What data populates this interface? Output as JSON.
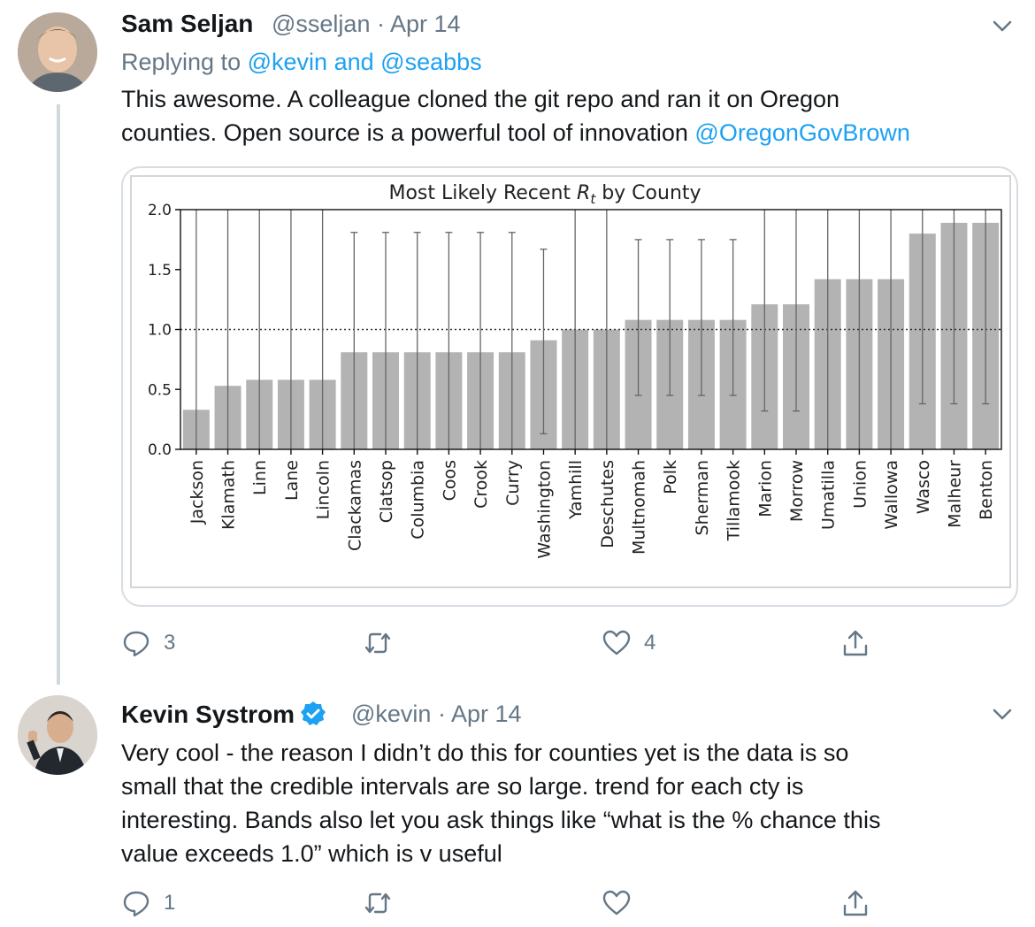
{
  "tweet1": {
    "name": "Sam Seljan",
    "handle": "@sseljan",
    "sep": "·",
    "date": "Apr 14",
    "replying_prefix": "Replying to",
    "replying_user1": "@kevin",
    "replying_and": "and",
    "replying_user2": "@seabbs",
    "text_line1": "This awesome. A colleague cloned the git repo and ran it on Oregon",
    "text_line2": "counties. Open source is a powerful tool of innovation",
    "mention": "@OregonGovBrown",
    "reply_count": "3",
    "retweet_count": "",
    "like_count": "4"
  },
  "tweet2": {
    "name": "Kevin Systrom",
    "handle": "@kevin",
    "sep": "·",
    "date": "Apr 14",
    "text_lines": [
      "Very cool - the reason I didn’t do this for counties yet is the data is so",
      "small that the credible intervals are so large. trend for each cty is",
      "interesting. Bands also let you ask things like “what is the % chance this",
      "value exceeds 1.0” which is v useful"
    ],
    "reply_count": "1",
    "retweet_count": "",
    "like_count": ""
  },
  "icons": {
    "reply": "reply-icon",
    "retweet": "retweet-icon",
    "like": "heart-icon",
    "share": "share-icon",
    "more": "chevron-down-icon",
    "verified": "verified-badge-icon"
  },
  "colors": {
    "link": "#1da1f2",
    "muted": "#657786",
    "bar": "#b3b3b3",
    "verified": "#1da1f2"
  },
  "chart_data": {
    "type": "bar",
    "title_main": "Most Likely Recent ",
    "title_sym": "R",
    "title_sub": "t",
    "title_end": " by County",
    "xlabel": "",
    "ylabel": "",
    "ylim": [
      0,
      2.0
    ],
    "yticks": [
      "0.0",
      "0.5",
      "1.0",
      "1.5",
      "2.0"
    ],
    "ytick_values": [
      0,
      0.5,
      1.0,
      1.5,
      2.0
    ],
    "reference_line": 1.0,
    "categories": [
      "Jackson",
      "Klamath",
      "Linn",
      "Lane",
      "Lincoln",
      "Clackamas",
      "Clatsop",
      "Columbia",
      "Coos",
      "Crook",
      "Curry",
      "Washington",
      "Yamhill",
      "Deschutes",
      "Multnomah",
      "Polk",
      "Sherman",
      "Tillamook",
      "Marion",
      "Morrow",
      "Umatilla",
      "Union",
      "Wallowa",
      "Wasco",
      "Malheur",
      "Benton"
    ],
    "values": [
      0.33,
      0.53,
      0.58,
      0.58,
      0.58,
      0.81,
      0.81,
      0.81,
      0.81,
      0.81,
      0.81,
      0.91,
      1.0,
      1.0,
      1.08,
      1.08,
      1.08,
      1.08,
      1.21,
      1.21,
      1.42,
      1.42,
      1.42,
      1.8,
      1.89,
      1.89
    ],
    "lower": [
      0.0,
      0.0,
      0.0,
      0.0,
      0.0,
      0.0,
      0.0,
      0.0,
      0.0,
      0.0,
      0.0,
      0.13,
      0.0,
      0.0,
      0.45,
      0.45,
      0.45,
      0.45,
      0.32,
      0.32,
      0.0,
      0.0,
      0.0,
      0.38,
      0.38,
      0.38
    ],
    "upper": [
      2.0,
      2.0,
      2.0,
      2.0,
      2.0,
      1.81,
      1.81,
      1.81,
      1.81,
      1.81,
      1.81,
      1.67,
      2.0,
      2.0,
      1.75,
      1.75,
      1.75,
      1.75,
      2.0,
      2.0,
      2.0,
      2.0,
      2.0,
      2.0,
      2.0,
      2.0
    ]
  }
}
